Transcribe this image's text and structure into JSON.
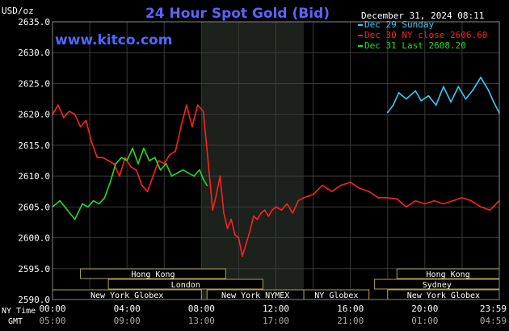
{
  "chart_data": {
    "type": "line",
    "title": "24 Hour Spot Gold (Bid)",
    "website": "www.kitco.com",
    "units": "USD/oz",
    "date_label": "December 31, 2024 08:11",
    "ylim": [
      2590,
      2635
    ],
    "y_ticks": [
      "2635.0",
      "2630.0",
      "2625.0",
      "2620.0",
      "2615.0",
      "2610.0",
      "2605.0",
      "2600.0",
      "2595.0",
      "2590.0"
    ],
    "y_tick_values": [
      2635,
      2630,
      2625,
      2620,
      2615,
      2610,
      2605,
      2600,
      2595,
      2590
    ],
    "x_label_ny": "NY Time",
    "x_label_gmt": "GMT",
    "x_ticks_ny": [
      "00:00",
      "04:00",
      "08:00",
      "12:00",
      "16:00",
      "20:00",
      "23:59"
    ],
    "x_ticks_gmt": [
      "05:00",
      "09:00",
      "13:00",
      "17:00",
      "21:00",
      "01:00",
      "04:59"
    ],
    "x_tick_hours": [
      0,
      4,
      8,
      12,
      16,
      20,
      24
    ],
    "grid": true,
    "legend_position": "top-right",
    "colors": {
      "background": "#000000",
      "grid": "#3a3a3a",
      "axis_text": "#ffffff",
      "title": "#6060ff",
      "website": "#4a6aff",
      "shaded": "#1c211c",
      "market_border": "#b0a050",
      "market_text": "#ffffff"
    },
    "shaded_hours": [
      8,
      13.5
    ],
    "markets_row1": [
      {
        "name": "Hong Kong",
        "start": 1.5,
        "end": 9.3
      },
      {
        "name": "Hong Kong",
        "start": 18.5,
        "end": 26
      }
    ],
    "markets_row2": [
      {
        "name": "London",
        "start": 3,
        "end": 11.3
      },
      {
        "name": "Sydney",
        "start": 17.3,
        "end": 26
      }
    ],
    "markets_row3": [
      {
        "name": "New York Globex",
        "start": 0,
        "end": 8
      },
      {
        "name": "New York NYMEX",
        "start": 8.3,
        "end": 13.5
      },
      {
        "name": "NY Globex",
        "start": 13.5,
        "end": 17
      },
      {
        "name": "New York Globex",
        "start": 18,
        "end": 24
      }
    ],
    "series": [
      {
        "name": "Dec 29 Sunday",
        "color": "#33ccff",
        "x": [
          18.0,
          18.3,
          18.6,
          19.0,
          19.5,
          19.8,
          20.2,
          20.6,
          21.0,
          21.4,
          21.8,
          22.2,
          22.6,
          23.0,
          23.2,
          23.4,
          23.7,
          24.0
        ],
        "y": [
          2620.3,
          2621.5,
          2623.5,
          2622.5,
          2623.8,
          2622.2,
          2623.0,
          2621.5,
          2624.5,
          2622.0,
          2624.5,
          2622.5,
          2624.0,
          2626.0,
          2625.0,
          2624.0,
          2622.0,
          2620.2
        ]
      },
      {
        "name": "Dec 30 NY close 2606.60",
        "color": "#ff2020",
        "x": [
          0,
          0.3,
          0.6,
          0.9,
          1.2,
          1.5,
          1.8,
          2.1,
          2.4,
          2.7,
          3.0,
          3.3,
          3.6,
          3.9,
          4.2,
          4.5,
          4.8,
          5.1,
          5.4,
          5.7,
          6.0,
          6.3,
          6.6,
          6.9,
          7.2,
          7.5,
          7.8,
          8.1,
          8.4,
          8.6,
          8.8,
          9.0,
          9.2,
          9.4,
          9.6,
          9.8,
          10.0,
          10.2,
          10.4,
          10.6,
          10.8,
          11.0,
          11.2,
          11.4,
          11.6,
          11.8,
          12.0,
          12.3,
          12.6,
          12.9,
          13.2,
          13.5,
          14.0,
          14.5,
          15.0,
          15.5,
          16.0,
          16.5,
          17.0,
          17.5,
          18.0,
          18.5,
          19.0,
          19.5,
          20.0,
          20.5,
          21.0,
          21.5,
          22.0,
          22.5,
          23.0,
          23.5,
          24.0
        ],
        "y": [
          2620.0,
          2621.5,
          2619.5,
          2620.5,
          2620.0,
          2618.0,
          2619.0,
          2615.5,
          2613.0,
          2613.0,
          2612.5,
          2612.0,
          2610.0,
          2613.0,
          2611.5,
          2611.0,
          2608.5,
          2607.5,
          2610.0,
          2612.5,
          2612.0,
          2613.5,
          2614.0,
          2618.0,
          2621.5,
          2618.0,
          2621.5,
          2620.5,
          2611.0,
          2604.5,
          2607.0,
          2610.0,
          2604.0,
          2601.5,
          2603.0,
          2600.5,
          2600.0,
          2597.0,
          2599.0,
          2601.0,
          2603.5,
          2603.0,
          2604.0,
          2604.5,
          2603.5,
          2604.5,
          2605.0,
          2604.5,
          2605.5,
          2604.0,
          2606.0,
          2606.5,
          2607.0,
          2608.5,
          2607.5,
          2608.5,
          2609.0,
          2608.0,
          2607.5,
          2606.5,
          2606.5,
          2606.3,
          2605.0,
          2606.0,
          2605.5,
          2606.0,
          2605.5,
          2606.0,
          2606.5,
          2606.0,
          2605.0,
          2604.5,
          2606.0
        ]
      },
      {
        "name": "Dec 31 Last 2608.20",
        "color": "#22dd22",
        "x": [
          0,
          0.4,
          0.8,
          1.2,
          1.6,
          1.9,
          2.2,
          2.5,
          2.8,
          3.1,
          3.4,
          3.7,
          4.0,
          4.3,
          4.6,
          4.9,
          5.2,
          5.5,
          5.8,
          6.1,
          6.4,
          6.7,
          7.0,
          7.3,
          7.6,
          7.9,
          8.1,
          8.3
        ],
        "y": [
          2605.0,
          2606.0,
          2604.5,
          2603.0,
          2605.5,
          2605.0,
          2606.0,
          2605.5,
          2606.5,
          2609.0,
          2612.0,
          2613.0,
          2612.5,
          2614.5,
          2612.0,
          2614.5,
          2612.5,
          2613.0,
          2611.0,
          2612.0,
          2610.0,
          2610.5,
          2611.0,
          2610.5,
          2610.0,
          2611.0,
          2609.5,
          2608.5
        ]
      }
    ]
  }
}
